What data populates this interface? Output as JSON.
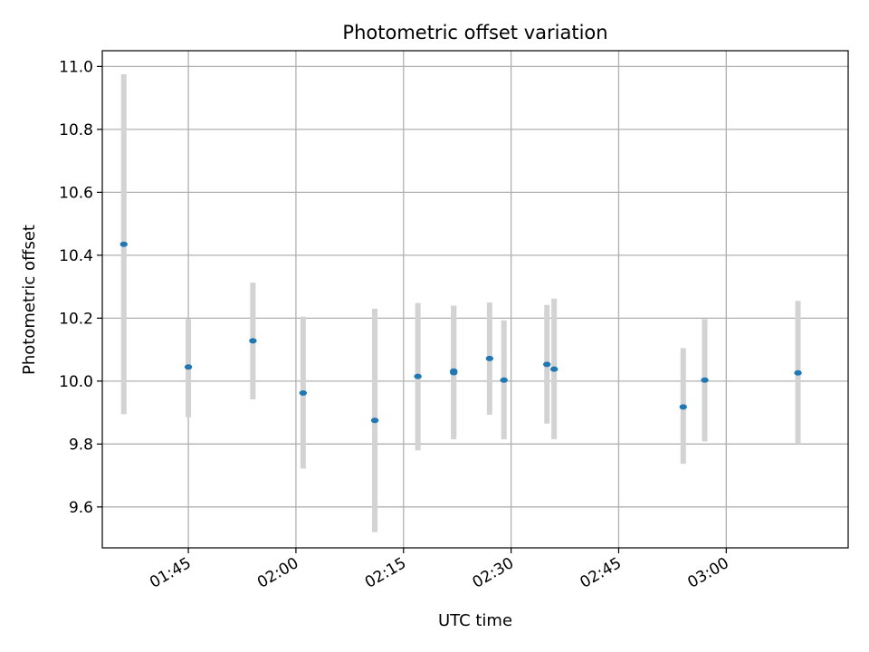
{
  "chart_data": {
    "type": "scatter",
    "title": "Photometric offset variation",
    "xlabel": "UTC time",
    "ylabel": "Photometric offset",
    "xlim": [
      "01:33",
      "03:17"
    ],
    "ylim": [
      9.47,
      11.05
    ],
    "grid": true,
    "x_ticks": [
      "01:45",
      "02:00",
      "02:15",
      "02:30",
      "02:45",
      "03:00"
    ],
    "y_ticks": [
      9.6,
      9.8,
      10.0,
      10.2,
      10.4,
      10.6,
      10.8,
      11.0
    ],
    "y_tick_labels": [
      "9.6",
      "9.8",
      "10.0",
      "10.2",
      "10.4",
      "10.6",
      "10.8",
      "11.0"
    ],
    "colors": {
      "point": "#1f77b4",
      "errorbar": "#d3d3d3",
      "grid": "#b0b0b0"
    },
    "series": [
      {
        "x": [
          "01:36",
          "01:45",
          "01:54",
          "02:01",
          "02:11",
          "02:17",
          "02:22",
          "02:22",
          "02:27",
          "02:29",
          "02:35",
          "02:36",
          "02:54",
          "02:57",
          "03:10"
        ],
        "y": [
          10.435,
          10.045,
          10.128,
          9.962,
          9.875,
          10.015,
          10.032,
          10.027,
          10.072,
          10.003,
          10.053,
          10.038,
          9.918,
          10.003,
          10.026
        ],
        "yerr_low": [
          9.895,
          9.885,
          9.942,
          9.722,
          9.52,
          9.78,
          9.825,
          9.815,
          9.893,
          9.815,
          9.865,
          9.815,
          9.737,
          9.808,
          9.8
        ],
        "yerr_high": [
          10.975,
          10.197,
          10.313,
          10.205,
          10.23,
          10.248,
          10.24,
          10.24,
          10.25,
          10.193,
          10.242,
          10.262,
          10.105,
          10.197,
          10.255
        ]
      }
    ]
  }
}
